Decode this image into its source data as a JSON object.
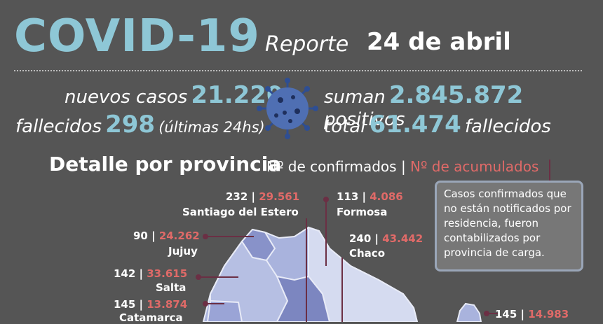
{
  "header": {
    "title": "COVID-19",
    "reporte_label": "Reporte",
    "date": "24 de abril"
  },
  "stats": {
    "nuevos_label": "nuevos casos",
    "nuevos_value": "21.220",
    "fallecidos_label": "fallecidos",
    "fallecidos_value": "298",
    "fallecidos_note": "(últimas 24hs)",
    "suman_label": "suman",
    "suman_value": "2.845.872",
    "positivos_label": "positivos",
    "total_label": "total",
    "total_value": "61.474",
    "total_suffix": "fallecidos"
  },
  "detalle": {
    "heading": "Detalle por provincia",
    "confirmados_label": "Nº de confirmados",
    "separator": "|",
    "acumulados_label": "Nº de acumulados"
  },
  "note": "Casos confirmados que no están notificados por residencia, fueron contabilizados por provincia de carga.",
  "provinces": [
    {
      "name": "Santiago del Estero",
      "confirmados": "232",
      "acumulados": "29.561"
    },
    {
      "name": "Formosa",
      "confirmados": "113",
      "acumulados": "4.086"
    },
    {
      "name": "Jujuy",
      "confirmados": "90",
      "acumulados": "24.262"
    },
    {
      "name": "Chaco",
      "confirmados": "240",
      "acumulados": "43.442"
    },
    {
      "name": "Salta",
      "confirmados": "142",
      "acumulados": "33.615"
    },
    {
      "name": "Catamarca",
      "confirmados": "145",
      "acumulados": "13.874"
    },
    {
      "name": "",
      "confirmados": "145",
      "acumulados": "14.983"
    }
  ],
  "colors": {
    "title": "#8ec7d6",
    "accumulated": "#e06a68",
    "leader": "#6b2f44",
    "map_fill": "#a9b3dd"
  }
}
